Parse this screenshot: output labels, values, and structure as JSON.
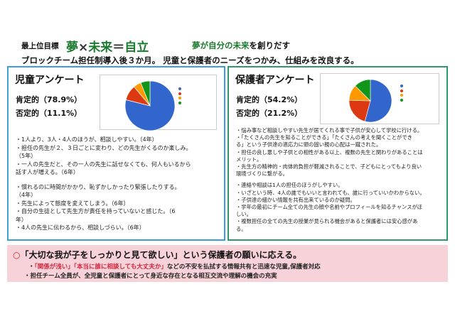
{
  "header": {
    "goal_label": "最上位目標",
    "yume": "夢",
    "times": "×",
    "mirai": "未来",
    "equals": "＝",
    "jiritsu": "自立",
    "slogan_pre": "夢が自分の",
    "slogan_green": "未来",
    "slogan_post": "を創りだす",
    "line2": "ブロックチーム担任制導入後３か月。 児童と保護者のニーズをつかみ、仕組みを改良する。"
  },
  "children": {
    "title": "児童アンケート",
    "positive": "肯定的（78.9%）",
    "negative": "否定的（11.1%）",
    "comments_a": [
      "・1人より、3人・4人のほうが、相談しやすい。（4年）",
      "・担任の先生が２、３日ごとに変わり、どの先生がくるのか楽しみ。",
      "（5年）",
      "・一人の先生だと、その一人の先生に話せなくても、何人もいるから",
      "話す人が増える。（6年）"
    ],
    "comments_b": [
      "・慣れるのに時間がかかり、恥ずかしかったり緊張したりする。",
      "（4年）",
      "・先生によって態度を変えてしまう。（6年）",
      "・自分の生徒として先生方が責任を持っていないと感じた。（6",
      "年）",
      "・4人の先生に伝わるから、相談しづらい。（6年）"
    ]
  },
  "parents": {
    "title": "保護者アンケート",
    "positive": "肯定的（54.2%）",
    "negative": "否定的（21.2%）",
    "comments_a": [
      "・悩み事など相談しやすい先生が居てくれる事で子供が安心して学校に行ける。",
      "・「たくさんの先生を知ることができる」「たくさんの考えを聞くことができ",
      "る」という子供達の適応力に頭の固い親の心配は一蹴された。",
      "・担任の良し悪しや子供との相性がある以上、複数の先生と関わりがあることは",
      "メリット。",
      "・先生方の精神的・肉体的負担が軽減されることで、子どもにとってもより良い",
      "環境づくりに繋がる。"
    ],
    "comments_b": [
      "・連絡や相談は1人の担任のほうがしやすい。",
      "・いざという時、4人の誰でもいいと言われても、誰に行っていいかわからない。",
      "・子供達の細かい情報を共有出来ているのか疑問。",
      "・学年の最初にチーム全ての先生の顔や名前やプロフィールを知るチャンスがほ",
      "しい。",
      "・複数担任の全ての先生の授業が見られる機会があると保護者には安心感があ",
      "る。"
    ]
  },
  "bottom": {
    "main_circle": "○",
    "main": "「大切な我が子をしっかりと見て欲しい」という保護者の願いに応える。",
    "sub1_red": "「関係が浅い」「本当に誰に相談しても大丈夫か」",
    "sub1_rest": "などの不安を払拭する情報共有と迅速な児童,保護者対応",
    "sub1_dot": "・",
    "sub2": "・担任チーム全員が、全児童と保護者にとって身近な存在となる相互交流や理解の機会の充実"
  },
  "chart_data": [
    {
      "type": "pie",
      "values": [
        78.9,
        10.0,
        5.0,
        6.1
      ],
      "colors": [
        "#3366cc",
        "#dc3912",
        "#ff9900",
        "#109618"
      ]
    },
    {
      "type": "pie",
      "values": [
        54.2,
        21.2,
        12.0,
        12.6
      ],
      "colors": [
        "#3366cc",
        "#dc3912",
        "#ff9900",
        "#109618"
      ]
    }
  ]
}
